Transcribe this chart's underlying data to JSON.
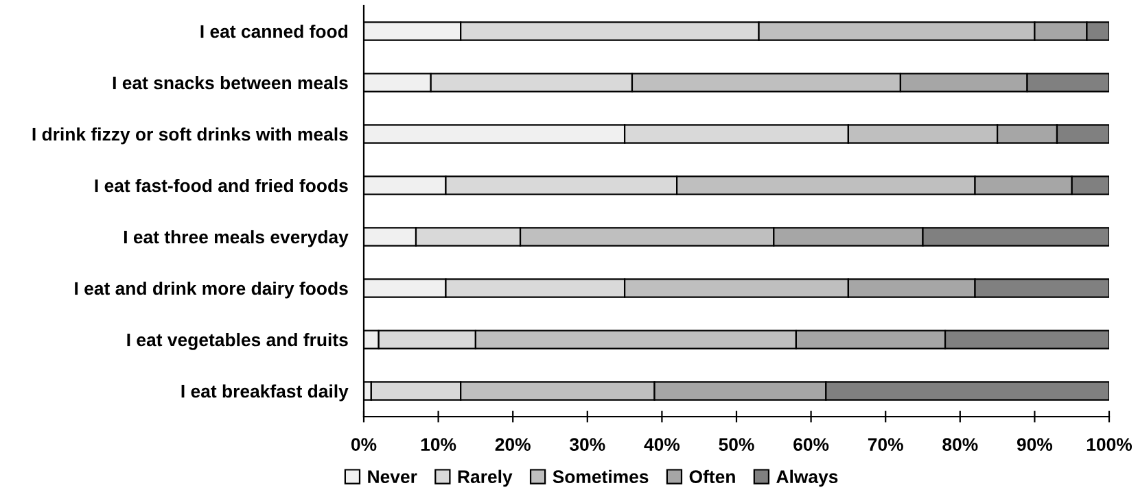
{
  "chart_data": {
    "type": "bar",
    "orientation": "horizontal",
    "stacked": true,
    "categories": [
      "I eat canned food",
      "I eat snacks between meals",
      "I drink fizzy or soft drinks with meals",
      "I eat fast-food and fried foods",
      "I eat three meals everyday",
      "I eat and drink more dairy foods",
      "I eat vegetables and fruits",
      "I eat breakfast daily"
    ],
    "series": [
      {
        "name": "Never",
        "color": "#f0f0f0",
        "values": [
          13,
          9,
          35,
          11,
          7,
          11,
          2,
          1
        ]
      },
      {
        "name": "Rarely",
        "color": "#d9d9d9",
        "values": [
          40,
          27,
          30,
          31,
          14,
          24,
          13,
          12
        ]
      },
      {
        "name": "Sometimes",
        "color": "#bfbfbf",
        "values": [
          37,
          36,
          20,
          40,
          34,
          30,
          43,
          26
        ]
      },
      {
        "name": "Often",
        "color": "#a6a6a6",
        "values": [
          7,
          17,
          8,
          13,
          20,
          17,
          20,
          23
        ]
      },
      {
        "name": "Always",
        "color": "#808080",
        "values": [
          3,
          11,
          7,
          5,
          25,
          18,
          22,
          38
        ]
      }
    ],
    "xlim": [
      0,
      100
    ],
    "xticks": [
      {
        "value": 0,
        "label": "0%"
      },
      {
        "value": 10,
        "label": "10%"
      },
      {
        "value": 20,
        "label": "20%"
      },
      {
        "value": 30,
        "label": "30%"
      },
      {
        "value": 40,
        "label": "40%"
      },
      {
        "value": 50,
        "label": "50%"
      },
      {
        "value": 60,
        "label": "60%"
      },
      {
        "value": 70,
        "label": "70%"
      },
      {
        "value": 80,
        "label": "80%"
      },
      {
        "value": 90,
        "label": "90%"
      },
      {
        "value": 100,
        "label": "100%"
      }
    ],
    "grid": false,
    "legend": "bottom"
  }
}
